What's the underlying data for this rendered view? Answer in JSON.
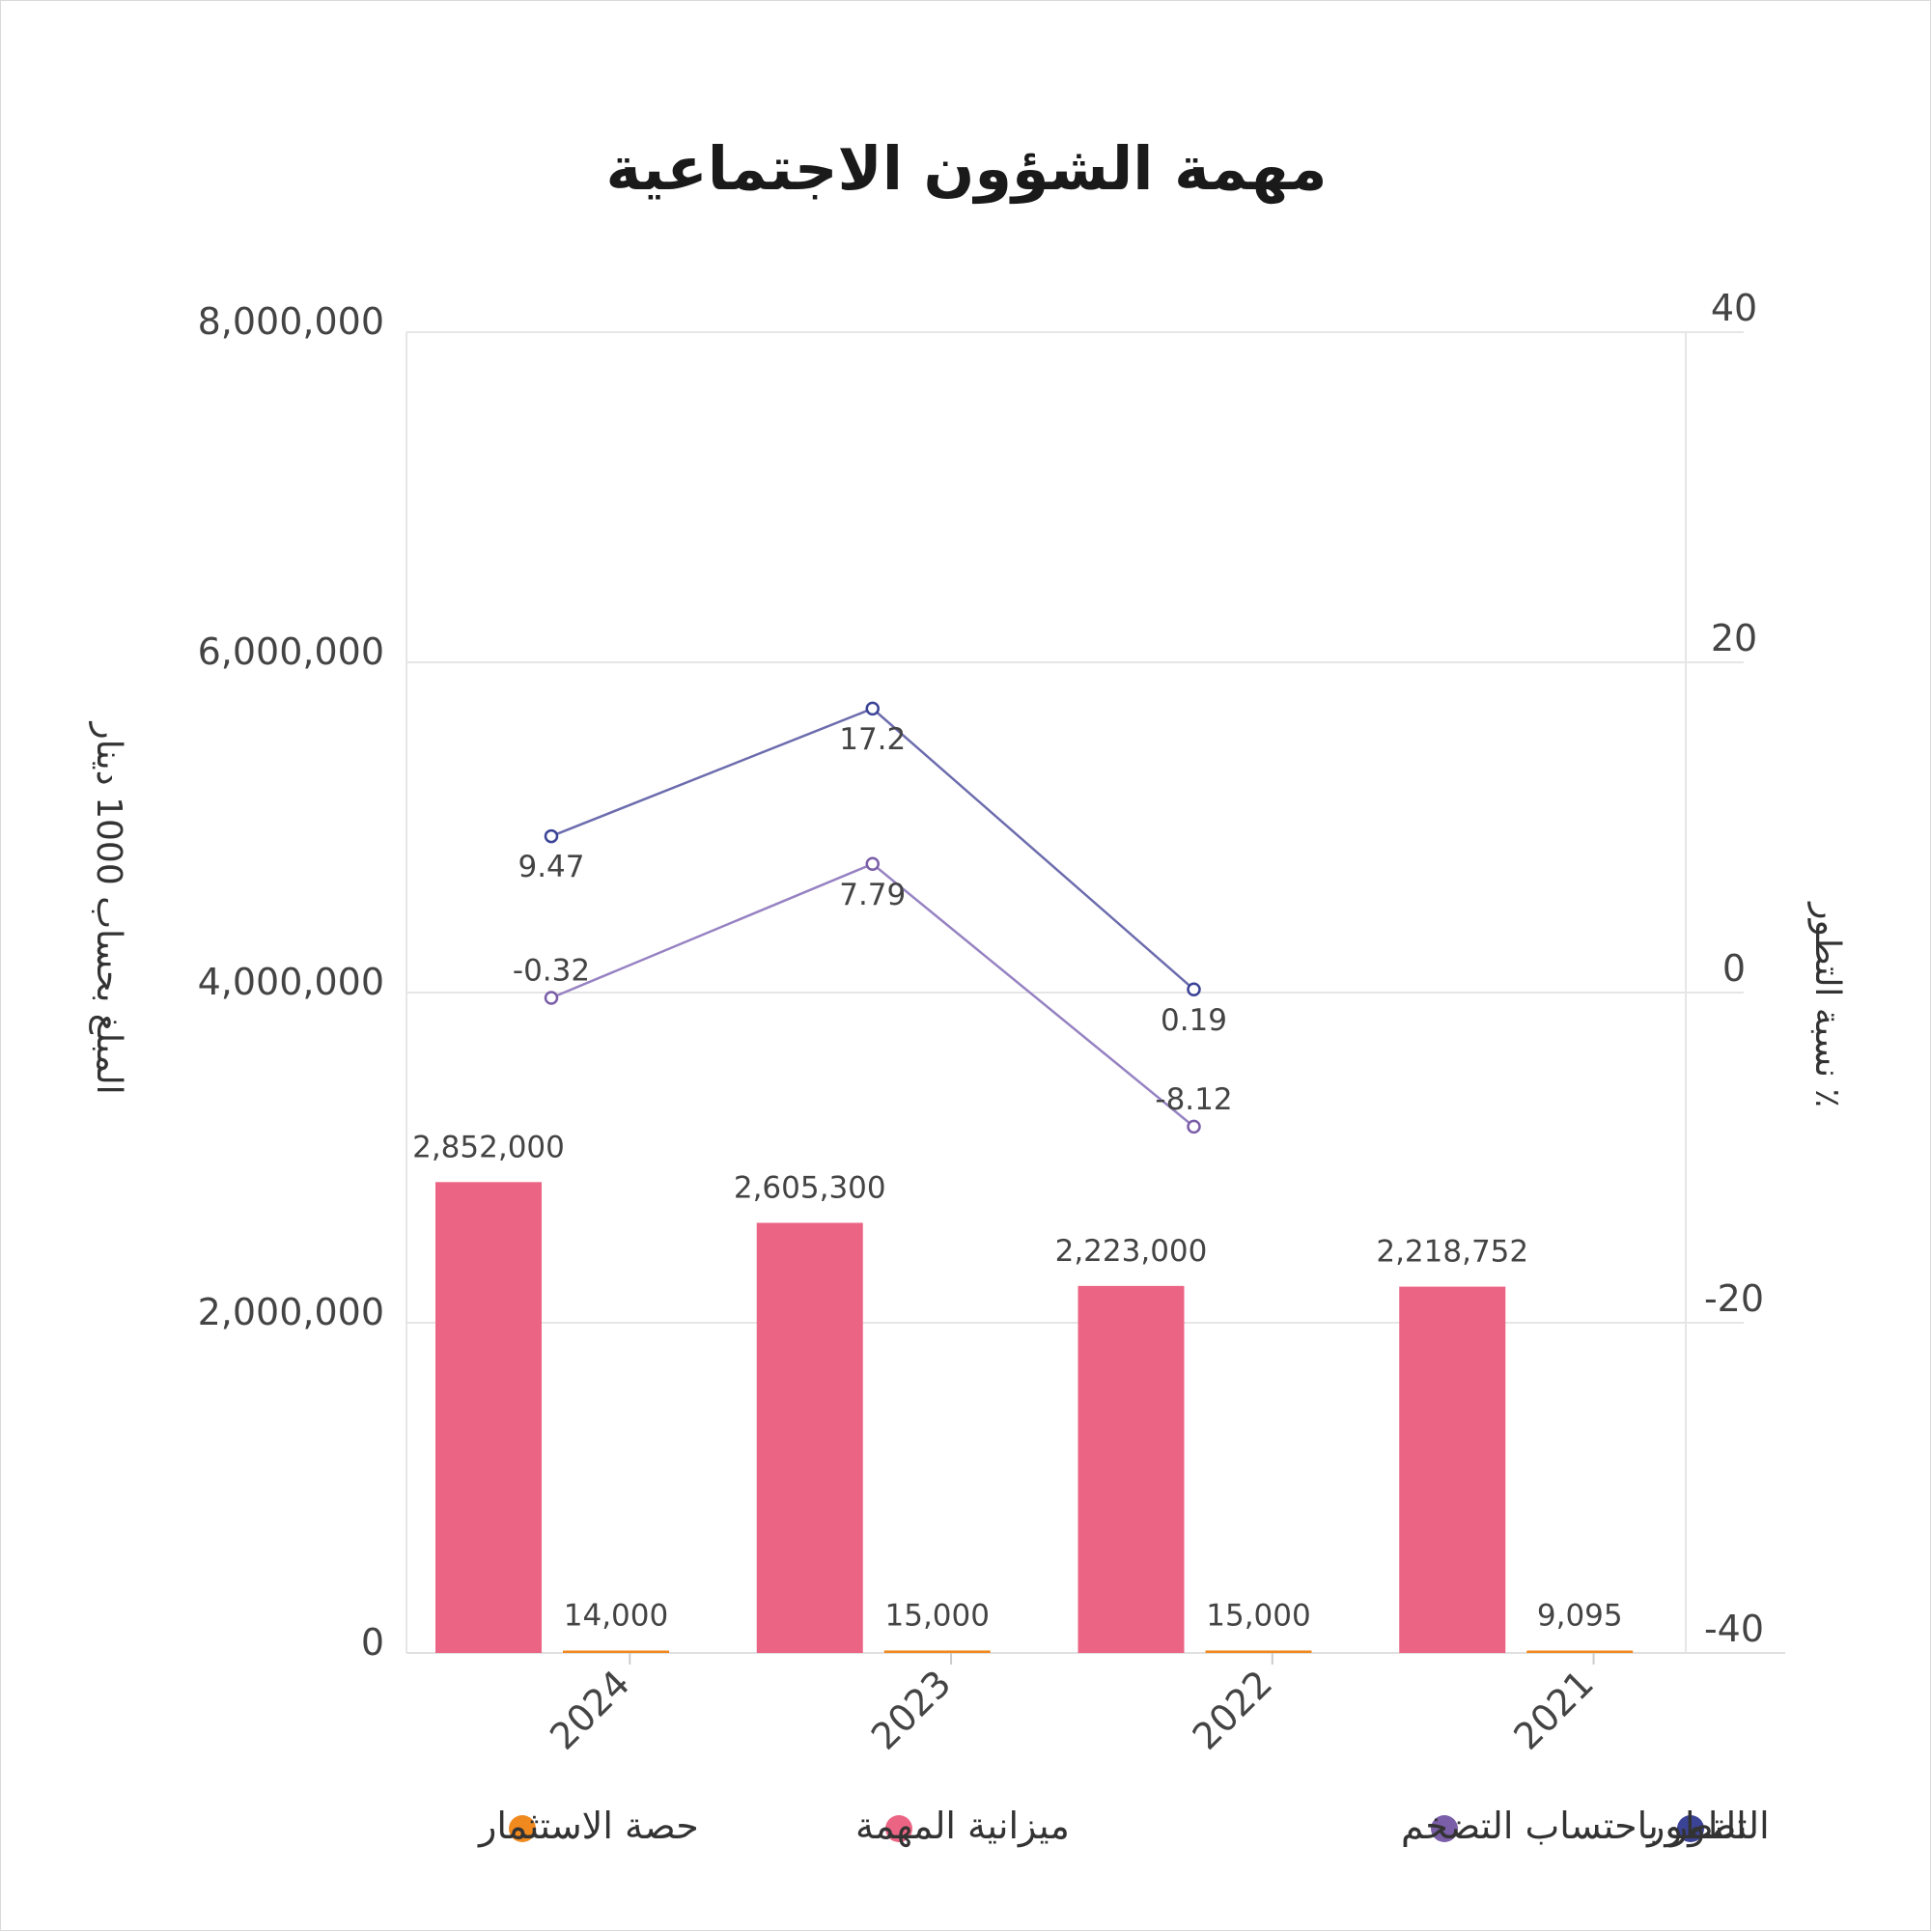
{
  "chart_data": {
    "type": "bar",
    "title": "مهمة الشؤون الاجتماعية",
    "ylabel": "المبلغ بحساب 1000 دينار",
    "y2label": "٪ نسبة التطور",
    "categories": [
      "2024",
      "2023",
      "2022",
      "2021"
    ],
    "ylim": [
      0,
      8000000
    ],
    "y2lim": [
      -40,
      40
    ],
    "yticks": [
      "0",
      "2,000,000",
      "4,000,000",
      "6,000,000",
      "8,000,000"
    ],
    "y2ticks": [
      "-40",
      "-20",
      "0",
      "20",
      "40"
    ],
    "grid": true,
    "legend_position": "bottom",
    "bar_series": [
      {
        "name": "ميزانية المهمة",
        "color": "#EC6484",
        "values": [
          2852000,
          2605300,
          2223000,
          2218752
        ],
        "labels": [
          "2,852,000",
          "2,605,300",
          "2,223,000",
          "2,218,752"
        ]
      },
      {
        "name": "حصة الاستثمار",
        "color": "#F0891E",
        "values": [
          14000,
          15000,
          15000,
          9095
        ],
        "labels": [
          "14,000",
          "15,000",
          "15,000",
          "9,095"
        ]
      }
    ],
    "line_series": [
      {
        "name": "التطور",
        "color": "#3B4396",
        "line_color": "#6C6CAE",
        "axis": "right",
        "values": [
          9.47,
          17.2,
          0.19
        ],
        "labels": [
          "9.47",
          "17.2",
          "0.19"
        ],
        "label_pos": [
          "below",
          "below",
          "below"
        ]
      },
      {
        "name": "التطور باحتساب التضخم",
        "color": "#7B5EA8",
        "line_color": "#9682C2",
        "axis": "right",
        "values": [
          -0.32,
          7.79,
          -8.12
        ],
        "labels": [
          "-0.32",
          "7.79",
          "-8.12"
        ],
        "label_pos": [
          "above",
          "below",
          "above"
        ]
      }
    ],
    "legend_items": [
      {
        "name": "التطور",
        "color": "#3B4396"
      },
      {
        "name": "التطور باحتساب التضخم",
        "color": "#7B5EA8"
      },
      {
        "name": "ميزانية المهمة",
        "color": "#EC6484"
      },
      {
        "name": "حصة الاستثمار",
        "color": "#F0891E"
      }
    ]
  }
}
